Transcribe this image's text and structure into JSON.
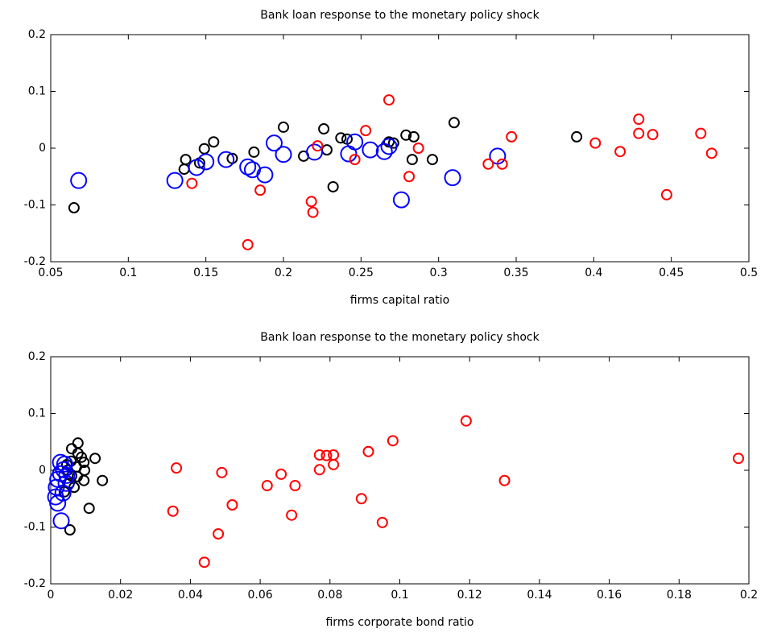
{
  "chart_data": [
    {
      "type": "scatter",
      "title": "Bank loan response to the monetary policy shock",
      "xlabel": "firms capital ratio",
      "xlim": [
        0.05,
        0.5
      ],
      "ylim": [
        -0.2,
        0.2
      ],
      "xticks": [
        0.05,
        0.1,
        0.15,
        0.2,
        0.25,
        0.3,
        0.35,
        0.4,
        0.45,
        0.5
      ],
      "yticks": [
        -0.2,
        -0.1,
        0,
        0.1,
        0.2
      ],
      "grid": false,
      "series": [
        {
          "color": "#000000",
          "marker": "small",
          "x": [
            0.065,
            0.136,
            0.137,
            0.146,
            0.149,
            0.155,
            0.167,
            0.181,
            0.2,
            0.213,
            0.226,
            0.228,
            0.232,
            0.237,
            0.241,
            0.268,
            0.271,
            0.279,
            0.283,
            0.284,
            0.296,
            0.31,
            0.389
          ],
          "values": [
            -0.105,
            -0.037,
            -0.02,
            -0.026,
            -0.001,
            0.011,
            -0.018,
            -0.007,
            0.037,
            -0.014,
            0.034,
            -0.003,
            -0.068,
            0.018,
            0.016,
            0.011,
            0.009,
            0.023,
            -0.02,
            0.02,
            -0.02,
            0.045,
            0.02
          ]
        },
        {
          "color": "#0000ff",
          "marker": "large",
          "x": [
            0.068,
            0.13,
            0.144,
            0.15,
            0.163,
            0.177,
            0.18,
            0.188,
            0.194,
            0.2,
            0.22,
            0.242,
            0.246,
            0.256,
            0.265,
            0.268,
            0.276,
            0.309,
            0.338
          ],
          "values": [
            -0.057,
            -0.057,
            -0.034,
            -0.024,
            -0.02,
            -0.033,
            -0.038,
            -0.047,
            0.009,
            -0.011,
            -0.007,
            -0.01,
            0.011,
            -0.003,
            -0.006,
            0.003,
            -0.091,
            -0.052,
            -0.014
          ]
        },
        {
          "color": "#ff0000",
          "marker": "small",
          "x": [
            0.141,
            0.177,
            0.185,
            0.218,
            0.219,
            0.222,
            0.246,
            0.253,
            0.268,
            0.287,
            0.281,
            0.332,
            0.341,
            0.347,
            0.401,
            0.417,
            0.429,
            0.429,
            0.438,
            0.447,
            0.469,
            0.476
          ],
          "values": [
            -0.062,
            -0.17,
            -0.074,
            -0.094,
            -0.113,
            0.004,
            -0.02,
            0.031,
            0.085,
            0,
            -0.05,
            -0.028,
            -0.028,
            0.02,
            0.009,
            -0.006,
            0.051,
            0.026,
            0.024,
            -0.082,
            0.026,
            -0.009
          ]
        }
      ]
    },
    {
      "type": "scatter",
      "title": "Bank loan response to the monetary policy shock",
      "xlabel": "firms corporate bond ratio",
      "xlim": [
        0,
        0.2
      ],
      "ylim": [
        -0.2,
        0.2
      ],
      "xticks": [
        0,
        0.02,
        0.04,
        0.06,
        0.08,
        0.1,
        0.12,
        0.14,
        0.16,
        0.18,
        0.2
      ],
      "yticks": [
        -0.2,
        -0.1,
        0,
        0.1,
        0.2
      ],
      "grid": false,
      "series": [
        {
          "color": "#000000",
          "marker": "small",
          "x": [
            0.0078,
            0.006,
            0.0078,
            0.0088,
            0.0095,
            0.0097,
            0.0127,
            0.0058,
            0.0048,
            0.006,
            0.0076,
            0.0095,
            0.0148,
            0.0053,
            0.0039,
            0.011,
            0.0055,
            0.0074,
            0.0046,
            0.0067
          ],
          "values": [
            0.048,
            0.038,
            0.03,
            0.023,
            0.014,
            0,
            0.021,
            0.016,
            0,
            -0.01,
            -0.011,
            -0.018,
            -0.018,
            -0.023,
            -0.038,
            -0.067,
            -0.105,
            0.006,
            0.01,
            -0.03
          ]
        },
        {
          "color": "#0000ff",
          "marker": "large",
          "x": [
            0.0028,
            0.002,
            0.0016,
            0.0014,
            0.002,
            0.003,
            0.004,
            0.0037,
            0.0046,
            0.0044,
            0.0035,
            0.0028
          ],
          "values": [
            -0.006,
            -0.016,
            -0.03,
            -0.047,
            -0.058,
            -0.089,
            0.011,
            0.001,
            -0.009,
            -0.023,
            -0.04,
            0.014
          ]
        },
        {
          "color": "#ff0000",
          "marker": "small",
          "x": [
            0.036,
            0.035,
            0.044,
            0.048,
            0.049,
            0.052,
            0.062,
            0.066,
            0.069,
            0.07,
            0.077,
            0.077,
            0.079,
            0.081,
            0.081,
            0.089,
            0.091,
            0.095,
            0.098,
            0.119,
            0.13,
            0.197
          ],
          "values": [
            0.004,
            -0.072,
            -0.162,
            -0.112,
            -0.004,
            -0.061,
            -0.027,
            -0.007,
            -0.079,
            -0.027,
            0.027,
            0.001,
            0.026,
            0.027,
            0.01,
            -0.05,
            0.033,
            -0.092,
            0.052,
            0.087,
            -0.018,
            0.021
          ]
        }
      ]
    }
  ]
}
